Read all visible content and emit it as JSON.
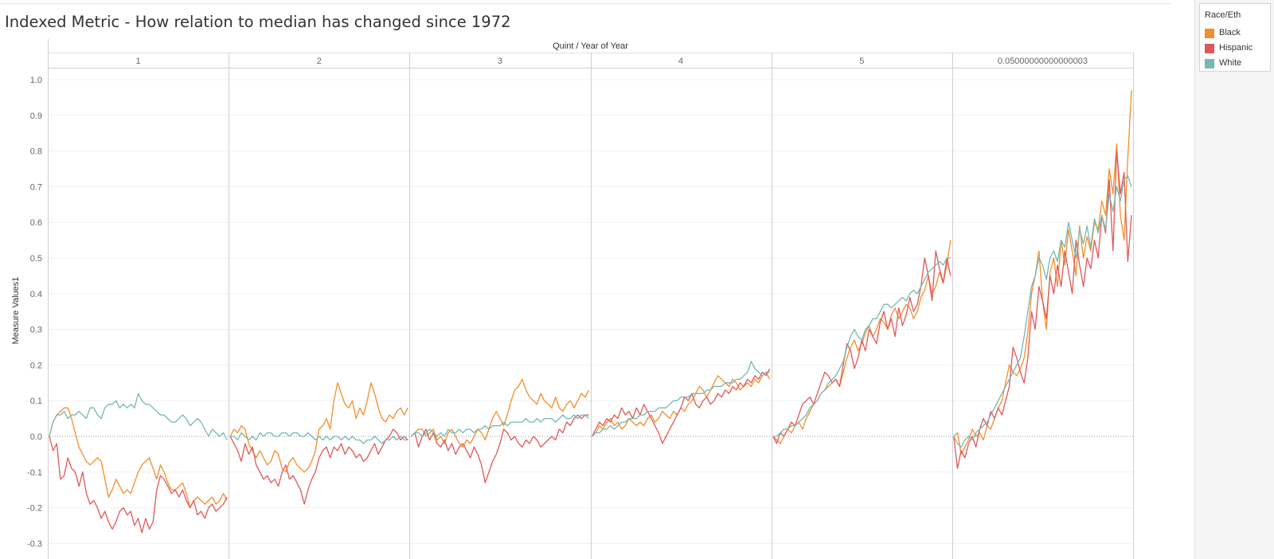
{
  "title": "Indexed Metric - How relation to median has changed since 1972",
  "legend": {
    "title": "Race/Eth",
    "items": [
      {
        "label": "Black",
        "color": "#f28e2b"
      },
      {
        "label": "Hispanic",
        "color": "#e15759"
      },
      {
        "label": "White",
        "color": "#76b7b2"
      }
    ]
  },
  "chart_data": {
    "type": "line",
    "column_header": "Quint  /  Year of Year",
    "panels": [
      "1",
      "2",
      "3",
      "4",
      "5",
      "0.05000000000000003"
    ],
    "ylabel": "Measure Values1",
    "ylim": [
      -0.3,
      1.0
    ],
    "yticks": [
      "1.0",
      "0.9",
      "0.8",
      "0.7",
      "0.6",
      "0.5",
      "0.4",
      "0.3",
      "0.2",
      "0.1",
      "0.0",
      "-0.1",
      "-0.2",
      "-0.3"
    ],
    "reference_line": 0.0,
    "grid": "horizontal",
    "series": [
      {
        "name": "Black",
        "color": "#f28e2b",
        "panel_values": [
          [
            0.0,
            0.04,
            0.06,
            0.07,
            0.08,
            0.08,
            0.05,
            0.01,
            -0.03,
            -0.05,
            -0.07,
            -0.08,
            -0.07,
            -0.06,
            -0.07,
            -0.12,
            -0.17,
            -0.15,
            -0.12,
            -0.14,
            -0.16,
            -0.15,
            -0.16,
            -0.13,
            -0.1,
            -0.08,
            -0.07,
            -0.06,
            -0.09,
            -0.12,
            -0.08,
            -0.1,
            -0.13,
            -0.15,
            -0.15,
            -0.14,
            -0.13,
            -0.16,
            -0.2,
            -0.18,
            -0.17,
            -0.18,
            -0.19,
            -0.18,
            -0.17,
            -0.19,
            -0.18,
            -0.16,
            -0.18
          ],
          [
            0.0,
            0.02,
            0.01,
            0.03,
            0.02,
            -0.02,
            -0.04,
            -0.06,
            -0.04,
            -0.06,
            -0.08,
            -0.07,
            -0.04,
            -0.05,
            -0.09,
            -0.1,
            -0.07,
            -0.06,
            -0.08,
            -0.09,
            -0.1,
            -0.09,
            -0.07,
            -0.04,
            0.02,
            0.03,
            0.05,
            0.02,
            0.1,
            0.15,
            0.12,
            0.09,
            0.08,
            0.1,
            0.05,
            0.08,
            0.06,
            0.1,
            0.15,
            0.12,
            0.08,
            0.05,
            0.04,
            0.06,
            0.05,
            0.07,
            0.08,
            0.06,
            0.08
          ],
          [
            0.0,
            0.01,
            0.02,
            0.02,
            0.0,
            0.01,
            0.02,
            -0.01,
            0.0,
            -0.02,
            0.01,
            0.02,
            0.0,
            -0.02,
            -0.03,
            -0.01,
            -0.02,
            0.0,
            0.02,
            0.01,
            -0.01,
            0.02,
            0.05,
            0.07,
            0.05,
            0.03,
            0.06,
            0.1,
            0.13,
            0.14,
            0.16,
            0.13,
            0.11,
            0.1,
            0.09,
            0.12,
            0.1,
            0.09,
            0.08,
            0.11,
            0.08,
            0.07,
            0.09,
            0.1,
            0.08,
            0.1,
            0.12,
            0.11,
            0.13
          ],
          [
            0.0,
            0.01,
            0.03,
            0.02,
            0.04,
            0.05,
            0.03,
            0.04,
            0.02,
            0.03,
            0.05,
            0.04,
            0.03,
            0.04,
            0.03,
            0.05,
            0.06,
            0.04,
            0.05,
            0.07,
            0.06,
            0.05,
            0.07,
            0.06,
            0.08,
            0.07,
            0.09,
            0.1,
            0.12,
            0.14,
            0.13,
            0.11,
            0.13,
            0.15,
            0.17,
            0.16,
            0.15,
            0.14,
            0.16,
            0.15,
            0.13,
            0.14,
            0.15,
            0.14,
            0.16,
            0.15,
            0.17,
            0.18,
            0.16
          ],
          [
            0.0,
            -0.01,
            -0.02,
            0.0,
            0.02,
            0.01,
            0.03,
            0.04,
            0.02,
            0.05,
            0.07,
            0.09,
            0.1,
            0.12,
            0.13,
            0.14,
            0.15,
            0.16,
            0.14,
            0.18,
            0.22,
            0.25,
            0.27,
            0.24,
            0.26,
            0.29,
            0.31,
            0.28,
            0.3,
            0.33,
            0.32,
            0.3,
            0.34,
            0.36,
            0.33,
            0.35,
            0.37,
            0.36,
            0.33,
            0.35,
            0.39,
            0.41,
            0.45,
            0.4,
            0.42,
            0.46,
            0.43,
            0.48,
            0.55
          ],
          [
            0.0,
            0.01,
            -0.05,
            -0.03,
            -0.01,
            0.02,
            0.0,
            0.01,
            -0.01,
            0.03,
            0.02,
            0.05,
            0.08,
            0.1,
            0.15,
            0.2,
            0.18,
            0.17,
            0.19,
            0.22,
            0.29,
            0.4,
            0.45,
            0.52,
            0.38,
            0.3,
            0.46,
            0.5,
            0.42,
            0.55,
            0.48,
            0.58,
            0.52,
            0.45,
            0.59,
            0.5,
            0.56,
            0.52,
            0.6,
            0.58,
            0.66,
            0.62,
            0.75,
            0.68,
            0.82,
            0.62,
            0.55,
            0.78,
            0.97
          ]
        ]
      },
      {
        "name": "Hispanic",
        "color": "#e15759",
        "panel_values": [
          [
            0.0,
            -0.04,
            -0.02,
            -0.12,
            -0.11,
            -0.06,
            -0.09,
            -0.1,
            -0.14,
            -0.1,
            -0.16,
            -0.19,
            -0.18,
            -0.2,
            -0.23,
            -0.21,
            -0.24,
            -0.26,
            -0.24,
            -0.21,
            -0.2,
            -0.22,
            -0.21,
            -0.25,
            -0.23,
            -0.27,
            -0.23,
            -0.26,
            -0.24,
            -0.15,
            -0.11,
            -0.12,
            -0.14,
            -0.16,
            -0.15,
            -0.17,
            -0.15,
            -0.18,
            -0.2,
            -0.18,
            -0.22,
            -0.21,
            -0.23,
            -0.2,
            -0.19,
            -0.21,
            -0.2,
            -0.19,
            -0.17
          ],
          [
            0.0,
            -0.02,
            -0.04,
            -0.07,
            -0.02,
            -0.05,
            -0.03,
            -0.08,
            -0.1,
            -0.12,
            -0.11,
            -0.13,
            -0.12,
            -0.14,
            -0.1,
            -0.08,
            -0.12,
            -0.11,
            -0.13,
            -0.15,
            -0.19,
            -0.15,
            -0.12,
            -0.1,
            -0.06,
            -0.04,
            -0.03,
            -0.06,
            -0.03,
            -0.04,
            -0.02,
            -0.05,
            -0.03,
            -0.04,
            -0.06,
            -0.05,
            -0.07,
            -0.06,
            -0.04,
            -0.02,
            -0.05,
            -0.03,
            -0.01,
            0.0,
            0.02,
            0.01,
            -0.01,
            0.0,
            -0.01
          ],
          [
            0.0,
            0.01,
            -0.03,
            0.0,
            0.02,
            -0.01,
            0.01,
            -0.02,
            -0.03,
            -0.01,
            -0.04,
            -0.02,
            -0.05,
            -0.03,
            -0.02,
            -0.04,
            -0.06,
            -0.03,
            -0.05,
            -0.08,
            -0.13,
            -0.1,
            -0.07,
            -0.05,
            -0.02,
            0.02,
            0.01,
            -0.01,
            0.0,
            -0.02,
            -0.03,
            -0.01,
            -0.02,
            0.0,
            -0.01,
            -0.03,
            -0.02,
            -0.01,
            0.0,
            -0.01,
            0.02,
            0.01,
            0.04,
            0.03,
            0.05,
            0.06,
            0.05,
            0.06,
            0.06
          ],
          [
            0.0,
            0.02,
            0.04,
            0.03,
            0.05,
            0.04,
            0.06,
            0.05,
            0.08,
            0.06,
            0.07,
            0.05,
            0.08,
            0.06,
            0.09,
            0.07,
            0.05,
            0.03,
            0.01,
            -0.02,
            0.0,
            0.02,
            0.04,
            0.06,
            0.08,
            0.11,
            0.1,
            0.12,
            0.09,
            0.08,
            0.1,
            0.11,
            0.09,
            0.1,
            0.12,
            0.11,
            0.13,
            0.12,
            0.14,
            0.13,
            0.15,
            0.14,
            0.16,
            0.15,
            0.17,
            0.16,
            0.18,
            0.17,
            0.19
          ],
          [
            0.0,
            -0.02,
            0.01,
            0.0,
            0.02,
            0.04,
            0.03,
            0.06,
            0.09,
            0.1,
            0.11,
            0.09,
            0.12,
            0.15,
            0.18,
            0.17,
            0.15,
            0.16,
            0.14,
            0.2,
            0.26,
            0.24,
            0.19,
            0.22,
            0.27,
            0.24,
            0.3,
            0.28,
            0.26,
            0.32,
            0.35,
            0.3,
            0.33,
            0.28,
            0.36,
            0.31,
            0.34,
            0.39,
            0.35,
            0.37,
            0.42,
            0.5,
            0.45,
            0.38,
            0.52,
            0.47,
            0.43,
            0.5,
            0.45
          ],
          [
            0.0,
            -0.09,
            -0.04,
            -0.06,
            -0.02,
            0.0,
            -0.03,
            0.02,
            0.05,
            0.03,
            0.07,
            0.05,
            0.08,
            0.06,
            0.1,
            0.14,
            0.25,
            0.22,
            0.18,
            0.15,
            0.22,
            0.35,
            0.3,
            0.42,
            0.38,
            0.33,
            0.45,
            0.4,
            0.48,
            0.42,
            0.52,
            0.46,
            0.4,
            0.55,
            0.48,
            0.42,
            0.5,
            0.47,
            0.55,
            0.5,
            0.62,
            0.57,
            0.72,
            0.52,
            0.8,
            0.68,
            0.74,
            0.49,
            0.62
          ]
        ]
      },
      {
        "name": "White",
        "color": "#76b7b2",
        "panel_values": [
          [
            0.0,
            0.04,
            0.06,
            0.06,
            0.07,
            0.05,
            0.06,
            0.06,
            0.07,
            0.06,
            0.05,
            0.08,
            0.08,
            0.06,
            0.05,
            0.08,
            0.09,
            0.09,
            0.1,
            0.08,
            0.09,
            0.08,
            0.09,
            0.08,
            0.12,
            0.1,
            0.09,
            0.09,
            0.08,
            0.07,
            0.06,
            0.06,
            0.05,
            0.04,
            0.04,
            0.05,
            0.06,
            0.05,
            0.03,
            0.04,
            0.05,
            0.04,
            0.02,
            0.0,
            0.02,
            0.01,
            0.0,
            0.01,
            -0.01
          ],
          [
            0.0,
            0.0,
            -0.01,
            0.01,
            0.0,
            -0.01,
            0.0,
            -0.01,
            0.01,
            0.0,
            0.01,
            0.01,
            0.0,
            0.0,
            0.01,
            0.01,
            0.0,
            0.01,
            0.01,
            0.0,
            0.0,
            0.01,
            0.0,
            -0.01,
            0.0,
            -0.01,
            0.0,
            -0.01,
            0.0,
            0.0,
            -0.01,
            0.0,
            -0.01,
            0.0,
            -0.01,
            -0.01,
            -0.02,
            -0.01,
            -0.01,
            0.0,
            -0.01,
            -0.02,
            -0.01,
            -0.01,
            0.0,
            -0.01,
            0.0,
            -0.01,
            -0.01
          ],
          [
            0.0,
            0.01,
            0.01,
            0.0,
            0.01,
            0.02,
            0.01,
            0.0,
            0.01,
            0.0,
            0.02,
            0.01,
            0.01,
            0.02,
            0.01,
            0.02,
            0.02,
            0.01,
            0.02,
            0.02,
            0.03,
            0.02,
            0.03,
            0.03,
            0.03,
            0.04,
            0.03,
            0.04,
            0.04,
            0.04,
            0.04,
            0.05,
            0.04,
            0.04,
            0.05,
            0.04,
            0.05,
            0.05,
            0.05,
            0.04,
            0.05,
            0.06,
            0.05,
            0.05,
            0.06,
            0.05,
            0.06,
            0.06,
            0.05
          ],
          [
            0.0,
            0.01,
            0.01,
            0.02,
            0.02,
            0.03,
            0.02,
            0.03,
            0.04,
            0.04,
            0.05,
            0.05,
            0.05,
            0.06,
            0.06,
            0.07,
            0.07,
            0.07,
            0.08,
            0.08,
            0.08,
            0.09,
            0.1,
            0.1,
            0.11,
            0.11,
            0.11,
            0.12,
            0.12,
            0.12,
            0.12,
            0.13,
            0.13,
            0.14,
            0.14,
            0.14,
            0.15,
            0.15,
            0.15,
            0.16,
            0.16,
            0.17,
            0.18,
            0.21,
            0.19,
            0.18,
            0.17,
            0.18,
            0.18
          ],
          [
            0.0,
            0.0,
            0.01,
            0.02,
            0.02,
            0.03,
            0.03,
            0.04,
            0.05,
            0.06,
            0.08,
            0.09,
            0.1,
            0.12,
            0.13,
            0.15,
            0.16,
            0.17,
            0.19,
            0.21,
            0.25,
            0.28,
            0.3,
            0.28,
            0.27,
            0.3,
            0.31,
            0.33,
            0.33,
            0.35,
            0.37,
            0.37,
            0.36,
            0.37,
            0.38,
            0.39,
            0.38,
            0.4,
            0.41,
            0.4,
            0.42,
            0.44,
            0.46,
            0.47,
            0.48,
            0.49,
            0.48,
            0.5,
            0.5
          ],
          [
            0.0,
            -0.02,
            -0.03,
            -0.01,
            0.0,
            -0.01,
            0.01,
            0.02,
            0.03,
            0.04,
            0.06,
            0.08,
            0.1,
            0.12,
            0.14,
            0.16,
            0.18,
            0.2,
            0.22,
            0.28,
            0.35,
            0.42,
            0.45,
            0.5,
            0.48,
            0.44,
            0.5,
            0.52,
            0.49,
            0.55,
            0.53,
            0.6,
            0.55,
            0.5,
            0.58,
            0.54,
            0.59,
            0.53,
            0.61,
            0.57,
            0.62,
            0.58,
            0.68,
            0.63,
            0.7,
            0.66,
            0.72,
            0.73,
            0.7
          ]
        ]
      }
    ]
  }
}
